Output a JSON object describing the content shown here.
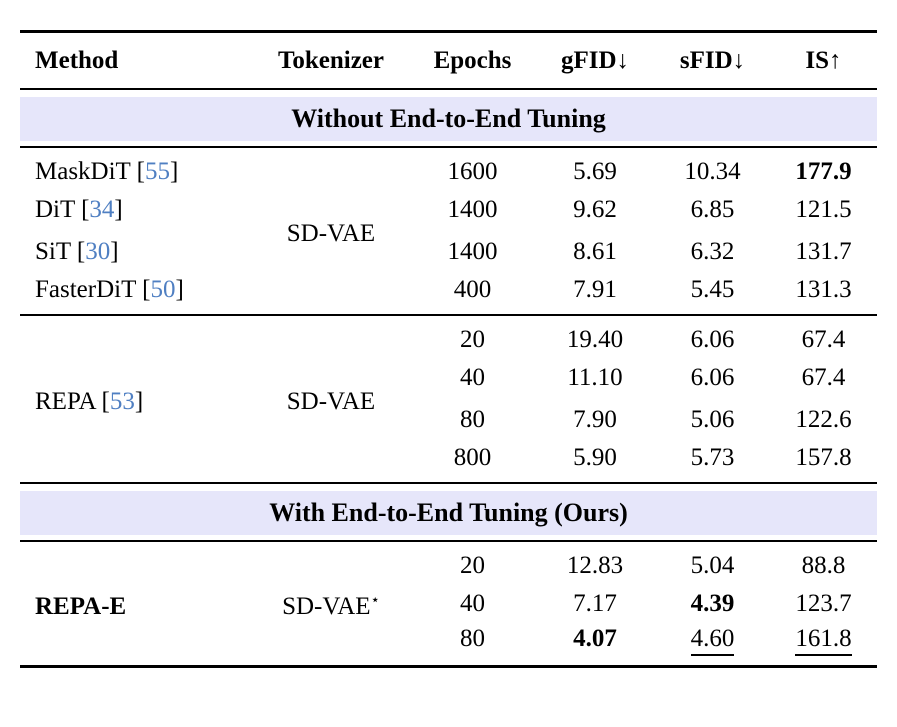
{
  "table": {
    "colors": {
      "band": "#e6e6fa",
      "cite": "#4f7fc2",
      "rule": "#000000",
      "text": "#000000"
    },
    "columns": [
      "Method",
      "Tokenizer",
      "Epochs",
      "gFID↓",
      "sFID↓",
      "IS↑"
    ],
    "punct": {
      "open": "[",
      "close": "]"
    },
    "bands": {
      "without": "Without End-to-End Tuning",
      "with": "With End-to-End Tuning (Ours)"
    },
    "group_a": {
      "tokenizer": "SD-VAE",
      "rows": [
        {
          "method": "MaskDiT",
          "cite": "55",
          "epochs": "1600",
          "gfid": "5.69",
          "sfid": "10.34",
          "is": "177.9"
        },
        {
          "method": "DiT",
          "cite": "34",
          "epochs": "1400",
          "gfid": "9.62",
          "sfid": "6.85",
          "is": "121.5"
        },
        {
          "method": "SiT",
          "cite": "30",
          "epochs": "1400",
          "gfid": "8.61",
          "sfid": "6.32",
          "is": "131.7"
        },
        {
          "method": "FasterDiT",
          "cite": "50",
          "epochs": "400",
          "gfid": "7.91",
          "sfid": "5.45",
          "is": "131.3"
        }
      ]
    },
    "group_b": {
      "method": "REPA",
      "cite": "53",
      "tokenizer": "SD-VAE",
      "rows": [
        {
          "epochs": "20",
          "gfid": "19.40",
          "sfid": "6.06",
          "is": "67.4"
        },
        {
          "epochs": "40",
          "gfid": "11.10",
          "sfid": "6.06",
          "is": "67.4"
        },
        {
          "epochs": "80",
          "gfid": "7.90",
          "sfid": "5.06",
          "is": "122.6"
        },
        {
          "epochs": "800",
          "gfid": "5.90",
          "sfid": "5.73",
          "is": "157.8"
        }
      ]
    },
    "group_c": {
      "method": "REPA-E",
      "tokenizer": "SD-VAE",
      "tokenizer_sup": "⋆",
      "rows": [
        {
          "epochs": "20",
          "gfid": "12.83",
          "sfid": "5.04",
          "is": "88.8"
        },
        {
          "epochs": "40",
          "gfid": "7.17",
          "sfid": "4.39",
          "is": "123.7"
        },
        {
          "epochs": "80",
          "gfid": "4.07",
          "sfid": "4.60",
          "is": "161.8"
        }
      ]
    }
  }
}
